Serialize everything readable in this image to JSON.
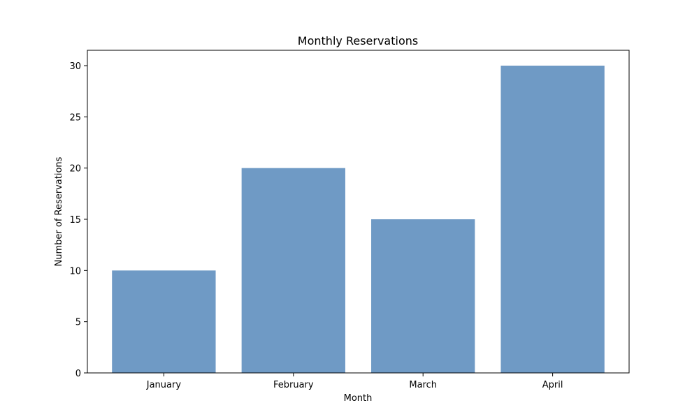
{
  "chart_data": {
    "type": "bar",
    "title": "Monthly Reservations",
    "xlabel": "Month",
    "ylabel": "Number of Reservations",
    "categories": [
      "January",
      "February",
      "March",
      "April"
    ],
    "values": [
      10,
      20,
      15,
      30
    ],
    "ylim": [
      0,
      31.5
    ],
    "yticks": [
      0,
      5,
      10,
      15,
      20,
      25,
      30
    ],
    "grid": false,
    "legend": "none",
    "bar_color": "#6f9ac5"
  }
}
